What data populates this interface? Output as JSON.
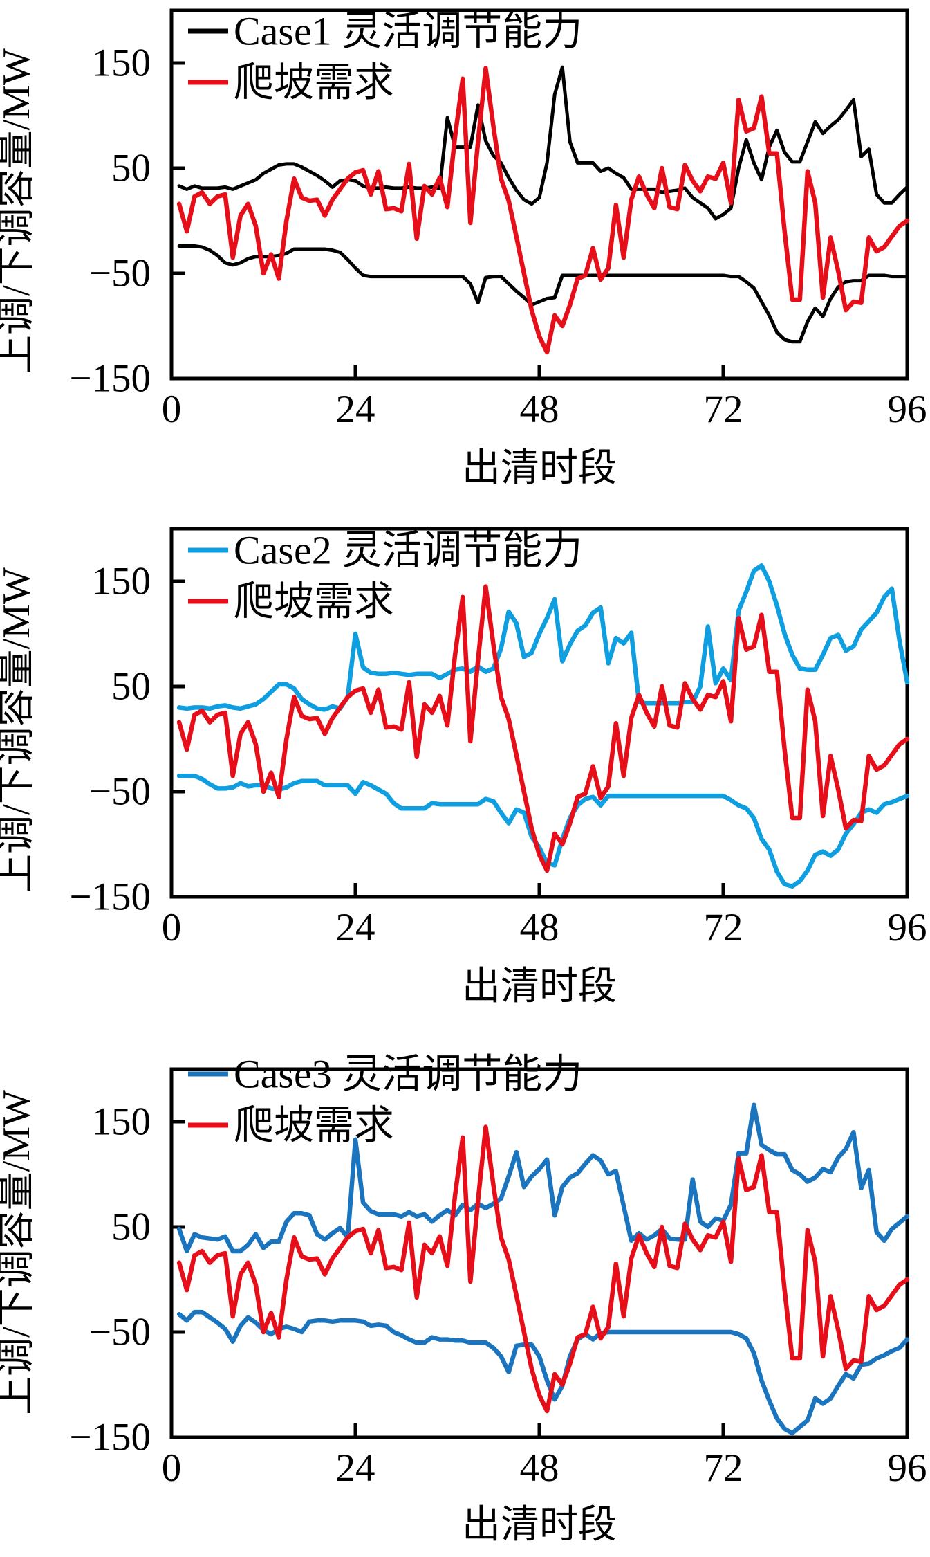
{
  "figure": {
    "xlabel": "出清时段",
    "ylabel": "上调/下调容量/MW"
  },
  "chart_data": [
    {
      "type": "line",
      "panel": "top",
      "xlabel": "出清时段",
      "ylabel": "上调/下调容量/MW",
      "xlim": [
        0,
        96
      ],
      "ylim": [
        -150,
        200
      ],
      "x_ticks": [
        0,
        24,
        48,
        72,
        96
      ],
      "y_ticks": [
        150,
        50,
        -50,
        -150
      ],
      "grid": false,
      "legend_position": "top-left-inside",
      "legend": [
        {
          "label": "Case1 灵活调节能力",
          "color": "#000000"
        },
        {
          "label": "爬坡需求",
          "color": "#e60e19"
        }
      ],
      "x": {
        "start": 1,
        "step": 1,
        "count": 96
      },
      "series": [
        {
          "name": "case1-up-capacity",
          "color": "#000000",
          "values": [
            33,
            30,
            33,
            31,
            31,
            31,
            32,
            30,
            33,
            36,
            39,
            45,
            49,
            53,
            54,
            54,
            51,
            47,
            43,
            38,
            32,
            38,
            39,
            38,
            33,
            31,
            31,
            32,
            31,
            31,
            32,
            31,
            31,
            32,
            31,
            98,
            70,
            70,
            70,
            110,
            76,
            62,
            55,
            41,
            29,
            20,
            16,
            22,
            55,
            120,
            146,
            75,
            55,
            55,
            55,
            47,
            50,
            45,
            41,
            30,
            30,
            30,
            30,
            27,
            28,
            29,
            31,
            22,
            17,
            12,
            2,
            6,
            12,
            50,
            77,
            55,
            39,
            70,
            86,
            65,
            56,
            56,
            75,
            94,
            83,
            90,
            96,
            105,
            115,
            61,
            68,
            25,
            17,
            17,
            25,
            32
          ]
        },
        {
          "name": "case1-down-capacity",
          "color": "#000000",
          "values": [
            -24,
            -24,
            -24,
            -25,
            -28,
            -33,
            -40,
            -42,
            -40,
            -36,
            -34,
            -34,
            -34,
            -33,
            -31,
            -27,
            -27,
            -27,
            -27,
            -27,
            -28,
            -30,
            -37,
            -45,
            -52,
            -53,
            -53,
            -53,
            -53,
            -53,
            -53,
            -53,
            -53,
            -53,
            -53,
            -53,
            -53,
            -53,
            -60,
            -78,
            -54,
            -53,
            -53,
            -60,
            -67,
            -73,
            -80,
            -77,
            -74,
            -73,
            -52,
            -52,
            -52,
            -52,
            -52,
            -52,
            -52,
            -52,
            -52,
            -52,
            -52,
            -52,
            -52,
            -52,
            -52,
            -52,
            -52,
            -52,
            -52,
            -52,
            -52,
            -52,
            -53,
            -53,
            -58,
            -64,
            -77,
            -90,
            -106,
            -113,
            -115,
            -115,
            -96,
            -83,
            -91,
            -74,
            -63,
            -58,
            -57,
            -57,
            -52,
            -52,
            -52,
            -53,
            -53,
            -53
          ]
        },
        {
          "name": "ramp-demand",
          "color": "#e60e19",
          "values": [
            16,
            -10,
            23,
            27,
            16,
            23,
            25,
            -35,
            5,
            16,
            -5,
            -50,
            -32,
            -55,
            0,
            40,
            22,
            19,
            20,
            5,
            20,
            30,
            40,
            46,
            48,
            25,
            47,
            11,
            12,
            9,
            54,
            -17,
            33,
            25,
            41,
            13,
            80,
            135,
            -2,
            75,
            145,
            90,
            40,
            19,
            -15,
            -50,
            -85,
            -110,
            -125,
            -90,
            -100,
            -80,
            -55,
            -52,
            -26,
            -56,
            -45,
            15,
            -35,
            20,
            42,
            25,
            12,
            50,
            13,
            11,
            53,
            38,
            28,
            42,
            40,
            55,
            17,
            115,
            85,
            88,
            118,
            64,
            64,
            -10,
            -75,
            -75,
            47,
            17,
            -73,
            -16,
            -48,
            -85,
            -77,
            -78,
            -16,
            -29,
            -25,
            -15,
            -5,
            0
          ]
        }
      ]
    },
    {
      "type": "line",
      "panel": "middle",
      "xlabel": "出清时段",
      "ylabel": "上调/下调容量/MW",
      "xlim": [
        0,
        96
      ],
      "ylim": [
        -150,
        200
      ],
      "x_ticks": [
        0,
        24,
        48,
        72,
        96
      ],
      "y_ticks": [
        150,
        50,
        -50,
        -150
      ],
      "grid": false,
      "legend_position": "top-left-inside",
      "legend": [
        {
          "label": "Case2 灵活调节能力",
          "color": "#0f9ee0"
        },
        {
          "label": "爬坡需求",
          "color": "#e60e19"
        }
      ],
      "x": {
        "start": 1,
        "step": 1,
        "count": 96
      },
      "series": [
        {
          "name": "case2-up-capacity",
          "color": "#0f9ee0",
          "values": [
            30,
            29,
            30,
            30,
            29,
            31,
            32,
            30,
            29,
            31,
            33,
            38,
            45,
            52,
            52,
            48,
            38,
            33,
            29,
            28,
            31,
            29,
            40,
            100,
            68,
            63,
            62,
            62,
            63,
            62,
            61,
            62,
            62,
            62,
            58,
            62,
            66,
            67,
            64,
            69,
            64,
            67,
            86,
            121,
            110,
            78,
            82,
            100,
            115,
            133,
            74,
            90,
            103,
            108,
            120,
            125,
            72,
            96,
            91,
            101,
            35,
            34,
            34,
            34,
            34,
            34,
            35,
            35,
            50,
            107,
            53,
            67,
            56,
            122,
            140,
            160,
            165,
            150,
            127,
            100,
            80,
            67,
            66,
            66,
            80,
            96,
            99,
            84,
            88,
            104,
            112,
            120,
            135,
            143,
            93,
            54
          ]
        },
        {
          "name": "case2-down-capacity",
          "color": "#0f9ee0",
          "values": [
            -35,
            -35,
            -35,
            -38,
            -43,
            -47,
            -47,
            -46,
            -42,
            -45,
            -44,
            -44,
            -47,
            -48,
            -46,
            -42,
            -40,
            -40,
            -40,
            -44,
            -44,
            -44,
            -44,
            -52,
            -41,
            -44,
            -48,
            -52,
            -61,
            -66,
            -66,
            -66,
            -66,
            -61,
            -62,
            -62,
            -62,
            -62,
            -62,
            -62,
            -57,
            -59,
            -70,
            -80,
            -67,
            -70,
            -93,
            -103,
            -118,
            -120,
            -95,
            -75,
            -63,
            -57,
            -55,
            -63,
            -54,
            -54,
            -54,
            -54,
            -54,
            -54,
            -54,
            -54,
            -54,
            -54,
            -54,
            -54,
            -54,
            -54,
            -54,
            -54,
            -58,
            -63,
            -66,
            -75,
            -95,
            -105,
            -126,
            -138,
            -140,
            -135,
            -125,
            -110,
            -107,
            -111,
            -105,
            -90,
            -81,
            -70,
            -67,
            -70,
            -62,
            -60,
            -57,
            -54
          ]
        },
        {
          "name": "ramp-demand",
          "color": "#e60e19",
          "values": [
            16,
            -10,
            23,
            27,
            16,
            23,
            25,
            -35,
            5,
            16,
            -5,
            -50,
            -32,
            -55,
            0,
            40,
            22,
            19,
            20,
            5,
            20,
            30,
            40,
            46,
            48,
            25,
            47,
            11,
            12,
            9,
            54,
            -17,
            33,
            25,
            41,
            13,
            80,
            135,
            -2,
            75,
            145,
            90,
            40,
            19,
            -15,
            -50,
            -85,
            -110,
            -125,
            -90,
            -100,
            -80,
            -55,
            -52,
            -26,
            -56,
            -45,
            15,
            -35,
            20,
            42,
            25,
            12,
            50,
            13,
            11,
            53,
            38,
            28,
            42,
            40,
            55,
            17,
            115,
            85,
            88,
            118,
            64,
            64,
            -10,
            -75,
            -75,
            47,
            17,
            -73,
            -16,
            -48,
            -85,
            -77,
            -78,
            -16,
            -29,
            -25,
            -15,
            -5,
            0
          ]
        }
      ]
    },
    {
      "type": "line",
      "panel": "bottom",
      "xlabel": "出清时段",
      "ylabel": "上调/下调容量/MW",
      "xlim": [
        0,
        96
      ],
      "ylim": [
        -150,
        200
      ],
      "x_ticks": [
        0,
        24,
        48,
        72,
        96
      ],
      "y_ticks": [
        150,
        50,
        -50,
        -150
      ],
      "grid": false,
      "legend_position": "top-left-inside",
      "legend": [
        {
          "label": "Case3 灵活调节能力",
          "color": "#1b75be"
        },
        {
          "label": "爬坡需求",
          "color": "#e60e19"
        }
      ],
      "x": {
        "start": 1,
        "step": 1,
        "count": 96
      },
      "series": [
        {
          "name": "case3-up-capacity",
          "color": "#1b75be",
          "values": [
            48,
            27,
            43,
            40,
            39,
            38,
            41,
            27,
            27,
            33,
            43,
            30,
            36,
            36,
            55,
            63,
            63,
            61,
            43,
            38,
            44,
            49,
            40,
            133,
            73,
            65,
            62,
            62,
            62,
            60,
            64,
            60,
            62,
            55,
            61,
            66,
            61,
            71,
            66,
            72,
            68,
            72,
            77,
            98,
            121,
            88,
            98,
            105,
            114,
            61,
            88,
            97,
            101,
            110,
            118,
            113,
            100,
            103,
            70,
            37,
            44,
            38,
            42,
            48,
            39,
            38,
            38,
            95,
            55,
            50,
            58,
            56,
            71,
            120,
            120,
            166,
            128,
            123,
            119,
            119,
            104,
            100,
            93,
            97,
            105,
            102,
            116,
            124,
            140,
            87,
            104,
            45,
            37,
            48,
            54,
            60
          ]
        },
        {
          "name": "case3-down-capacity",
          "color": "#1b75be",
          "values": [
            -33,
            -39,
            -31,
            -31,
            -36,
            -41,
            -47,
            -59,
            -44,
            -36,
            -41,
            -48,
            -52,
            -47,
            -45,
            -47,
            -50,
            -40,
            -39,
            -39,
            -40,
            -39,
            -39,
            -39,
            -40,
            -44,
            -43,
            -44,
            -50,
            -53,
            -57,
            -60,
            -60,
            -55,
            -57,
            -57,
            -58,
            -58,
            -60,
            -60,
            -60,
            -65,
            -73,
            -88,
            -63,
            -62,
            -62,
            -73,
            -96,
            -114,
            -101,
            -73,
            -57,
            -52,
            -57,
            -51,
            -50,
            -50,
            -50,
            -50,
            -50,
            -50,
            -50,
            -50,
            -50,
            -50,
            -50,
            -50,
            -50,
            -50,
            -50,
            -50,
            -50,
            -52,
            -56,
            -70,
            -96,
            -115,
            -132,
            -142,
            -146,
            -140,
            -134,
            -113,
            -118,
            -113,
            -101,
            -90,
            -94,
            -81,
            -80,
            -75,
            -72,
            -68,
            -65,
            -57
          ]
        },
        {
          "name": "ramp-demand",
          "color": "#e60e19",
          "values": [
            16,
            -10,
            23,
            27,
            16,
            23,
            25,
            -35,
            5,
            16,
            -5,
            -50,
            -32,
            -55,
            0,
            40,
            22,
            19,
            20,
            5,
            20,
            30,
            40,
            46,
            48,
            25,
            47,
            11,
            12,
            9,
            54,
            -17,
            33,
            25,
            41,
            13,
            80,
            135,
            -2,
            75,
            145,
            90,
            40,
            19,
            -15,
            -50,
            -85,
            -110,
            -125,
            -90,
            -100,
            -80,
            -55,
            -52,
            -26,
            -56,
            -45,
            15,
            -35,
            20,
            42,
            25,
            12,
            50,
            13,
            11,
            53,
            38,
            28,
            42,
            40,
            55,
            17,
            115,
            85,
            88,
            118,
            64,
            64,
            -10,
            -75,
            -75,
            47,
            17,
            -73,
            -16,
            -48,
            -85,
            -77,
            -78,
            -16,
            -29,
            -25,
            -15,
            -5,
            0
          ]
        }
      ]
    }
  ]
}
